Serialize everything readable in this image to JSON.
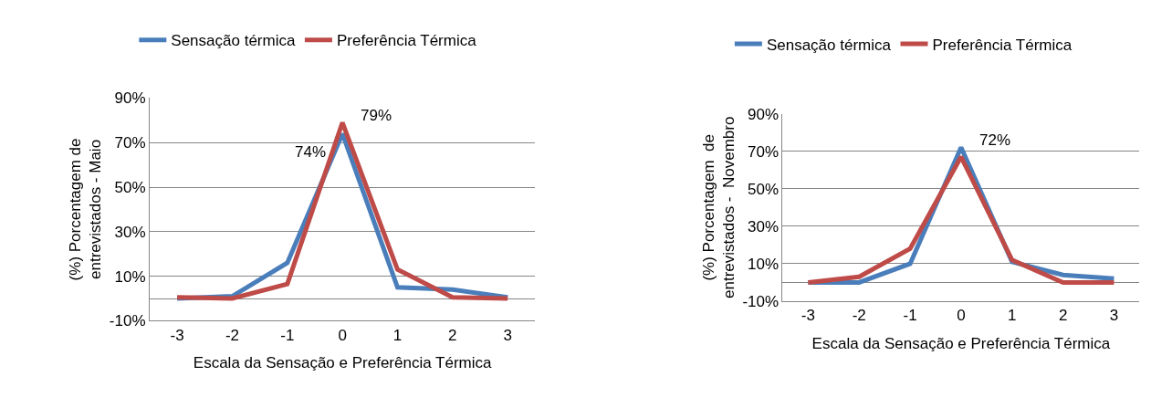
{
  "chart_data": [
    {
      "type": "line",
      "xlabel": "Escala da Sensação e Preferência Térmica",
      "ylabel": "(%) Porcentagem de\nentrevistados - Maio",
      "categories": [
        "-3",
        "-2",
        "-1",
        "0",
        "1",
        "2",
        "3"
      ],
      "ylim": [
        -10,
        90
      ],
      "yticks": [
        {
          "value": -10,
          "label": "-10%"
        },
        {
          "value": 10,
          "label": "10%"
        },
        {
          "value": 30,
          "label": "30%"
        },
        {
          "value": 50,
          "label": "50%"
        },
        {
          "value": 70,
          "label": "70%"
        },
        {
          "value": 90,
          "label": "90%"
        }
      ],
      "grid": "y",
      "legend": "top",
      "marker": "none",
      "line_style": "solid",
      "series": [
        {
          "name": "Sensação térmica",
          "color": "#4a7ebb",
          "values": [
            0,
            1,
            16,
            74,
            5,
            4,
            0.5
          ],
          "value_labels": [
            null,
            null,
            null,
            "74%",
            null,
            null,
            null
          ]
        },
        {
          "name": "Preferência Térmica",
          "color": "#be4b48",
          "values": [
            0.5,
            0,
            6.5,
            79,
            13,
            0.5,
            0
          ],
          "value_labels": [
            null,
            null,
            null,
            "79%",
            null,
            null,
            null
          ]
        }
      ]
    },
    {
      "type": "line",
      "xlabel": "Escala da Sensação e Preferência Térmica",
      "ylabel": "(%) Porcentagem  de\nentrevistados -  Novembro",
      "categories": [
        "-3",
        "-2",
        "-1",
        "0",
        "1",
        "2",
        "3"
      ],
      "ylim": [
        -10,
        90
      ],
      "yticks": [
        {
          "value": -10,
          "label": "-10%"
        },
        {
          "value": 10,
          "label": "10%"
        },
        {
          "value": 30,
          "label": "30%"
        },
        {
          "value": 50,
          "label": "50%"
        },
        {
          "value": 70,
          "label": "70%"
        },
        {
          "value": 90,
          "label": "90%"
        }
      ],
      "grid": "y",
      "legend": "top",
      "marker": "none",
      "line_style": "solid",
      "series": [
        {
          "name": "Sensação térmica",
          "color": "#4a7ebb",
          "values": [
            0,
            0,
            10,
            72,
            11,
            4,
            2
          ],
          "value_labels": [
            null,
            null,
            null,
            "72%",
            null,
            null,
            null
          ]
        },
        {
          "name": "Preferência Térmica",
          "color": "#be4b48",
          "values": [
            0,
            3,
            18,
            67,
            12,
            0,
            0
          ],
          "value_labels": [
            null,
            null,
            null,
            null,
            null,
            null,
            null
          ]
        }
      ]
    }
  ]
}
